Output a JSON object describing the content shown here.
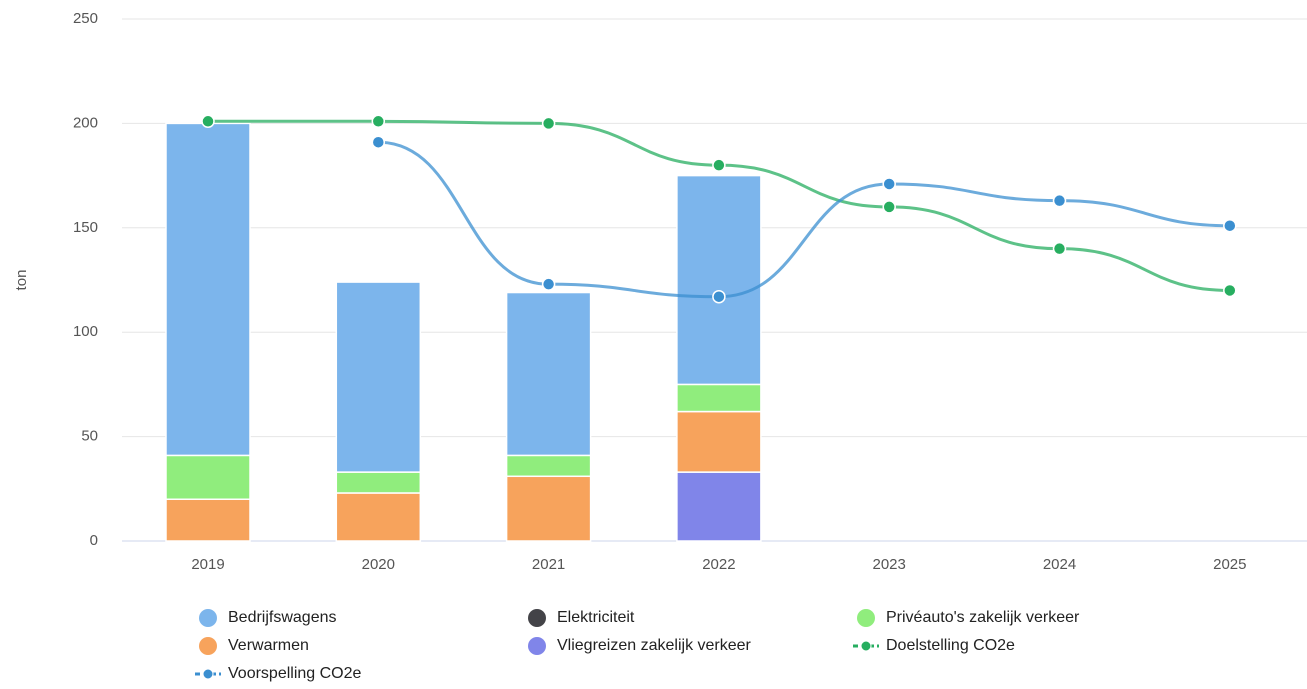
{
  "chart_data": {
    "type": "bar",
    "y_label": "ton",
    "categories": [
      "2019",
      "2020",
      "2021",
      "2022",
      "2023",
      "2024",
      "2025"
    ],
    "ylim": [
      0,
      250
    ],
    "yticks": [
      0,
      50,
      100,
      150,
      200,
      250
    ],
    "grid": true,
    "legend": "bottom",
    "series": [
      {
        "name": "Bedrijfswagens",
        "color": "#7cb5ec",
        "values": [
          159,
          91,
          78,
          100,
          null,
          null,
          null
        ]
      },
      {
        "name": "Elektriciteit",
        "color": "#434348",
        "values": [
          0,
          0,
          0,
          0,
          null,
          null,
          null
        ]
      },
      {
        "name": "Privéauto's zakelijk verkeer",
        "color": "#90ed7d",
        "values": [
          21,
          10,
          10,
          13,
          null,
          null,
          null
        ]
      },
      {
        "name": "Verwarmen",
        "color": "#f7a35c",
        "values": [
          20,
          23,
          31,
          29,
          null,
          null,
          null
        ]
      },
      {
        "name": "Vliegreizen zakelijk verkeer",
        "color": "#8085e9",
        "values": [
          null,
          null,
          null,
          33,
          null,
          null,
          null
        ]
      },
      {
        "name": "Doelstelling CO2e",
        "type": "line",
        "color": "#27ae60",
        "values": [
          201,
          201,
          200,
          180,
          160,
          140,
          120
        ]
      },
      {
        "name": "Voorspelling CO2e",
        "type": "line",
        "color": "#3b8fd0",
        "values": [
          null,
          191,
          123,
          117,
          171,
          163,
          151
        ]
      }
    ]
  }
}
